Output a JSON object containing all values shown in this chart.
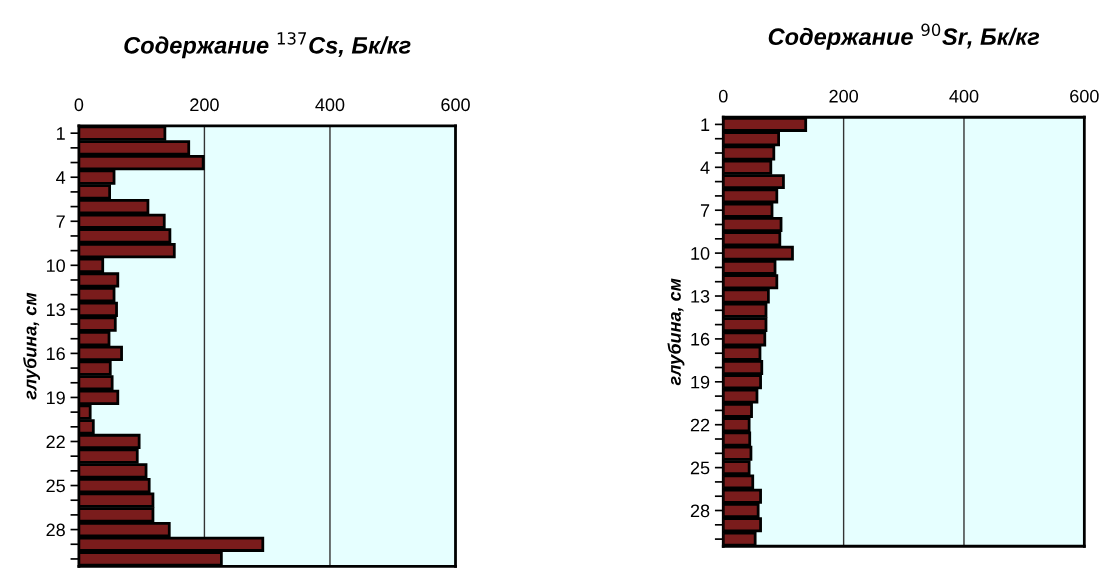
{
  "chart_data": [
    {
      "type": "bar",
      "orientation": "horizontal",
      "title": "Содержание $^{137}$Cs, Бк/кг",
      "ylabel": "глубина, см",
      "categories": [
        "1",
        null,
        null,
        "4",
        null,
        null,
        "7",
        null,
        null,
        "10",
        null,
        null,
        "13",
        null,
        null,
        "16",
        null,
        null,
        "19",
        null,
        null,
        "22",
        null,
        null,
        "25",
        null,
        null,
        "28",
        null,
        null
      ],
      "values": [
        137,
        175,
        198,
        56,
        49,
        110,
        136,
        145,
        152,
        38,
        62,
        56,
        60,
        58,
        48,
        68,
        50,
        53,
        62,
        18,
        23,
        96,
        93,
        107,
        112,
        118,
        118,
        144,
        293,
        227
      ],
      "color": "#7a1c1c",
      "xlim": [
        0,
        600
      ],
      "xticks": [
        0,
        200,
        400,
        600
      ],
      "grid": "x"
    },
    {
      "type": "bar",
      "orientation": "horizontal",
      "title": "Содержание $^{90}$Sr, Бк/кг",
      "ylabel": "глубина, см",
      "categories": [
        "1",
        null,
        null,
        "4",
        null,
        null,
        "7",
        null,
        null,
        "10",
        null,
        null,
        "13",
        null,
        null,
        "16",
        null,
        null,
        "19",
        null,
        null,
        "22",
        null,
        null,
        "25",
        null,
        null,
        "28",
        null,
        null
      ],
      "values": [
        137,
        92,
        84,
        79,
        100,
        89,
        81,
        96,
        94,
        115,
        86,
        89,
        75,
        71,
        71,
        69,
        61,
        64,
        62,
        56,
        47,
        43,
        44,
        46,
        43,
        49,
        62,
        58,
        62,
        53
      ],
      "color": "#7a1c1c",
      "xlim": [
        0,
        600
      ],
      "xticks": [
        0,
        200,
        400,
        600
      ],
      "grid": "x"
    }
  ]
}
